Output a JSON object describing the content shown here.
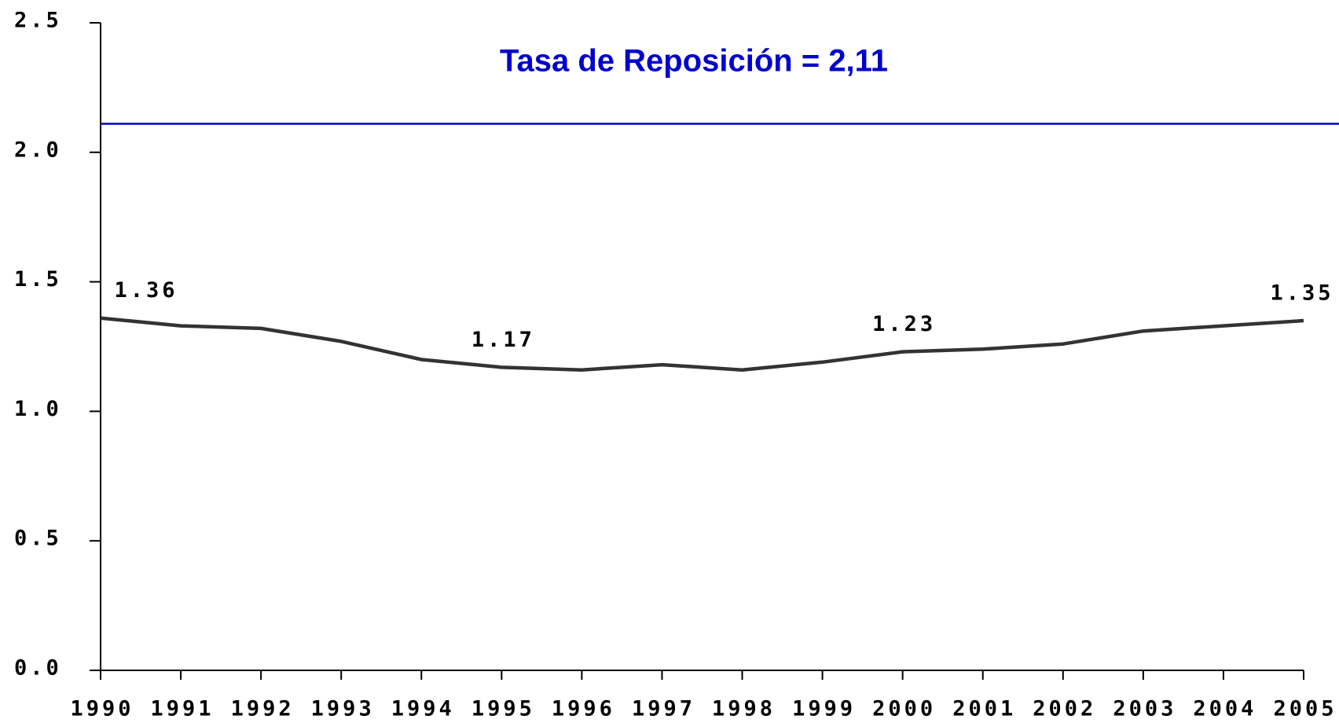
{
  "chart_data": {
    "type": "line",
    "categories": [
      "1990",
      "1991",
      "1992",
      "1993",
      "1994",
      "1995",
      "1996",
      "1997",
      "1998",
      "1999",
      "2000",
      "2001",
      "2002",
      "2003",
      "2004",
      "2005"
    ],
    "series": [
      {
        "color": "#333333",
        "values": [
          1.36,
          1.33,
          1.32,
          1.27,
          1.2,
          1.17,
          1.16,
          1.18,
          1.16,
          1.19,
          1.23,
          1.24,
          1.26,
          1.31,
          1.33,
          1.35
        ],
        "value_labels": [
          "1.36",
          null,
          null,
          null,
          null,
          "1.17",
          null,
          null,
          null,
          null,
          "1.23",
          null,
          null,
          null,
          null,
          "1.35"
        ]
      }
    ],
    "ylim": [
      0,
      2.5
    ],
    "yticks": [
      {
        "value": 0,
        "label": "0.0"
      },
      0.5,
      {
        "value": 1,
        "label": "1.0"
      },
      1.5,
      {
        "value": 2,
        "label": "2.0"
      },
      2.5
    ],
    "reference_line": {
      "value": 2.11,
      "label": "Tasa de Reposición = 2,11",
      "color": "#0000cc"
    },
    "grid": false
  }
}
